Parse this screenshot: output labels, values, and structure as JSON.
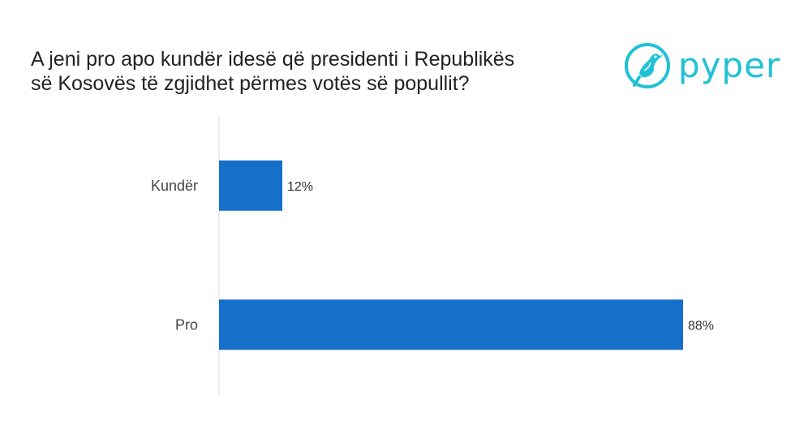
{
  "brand": {
    "name": "pyper",
    "logo_icon": "bird-in-circle-icon",
    "color": "#1fc1d6"
  },
  "colors": {
    "bar": "#1470c8",
    "axis": "#d9d9d9",
    "label": "#444444",
    "value_label": "#333333"
  },
  "chart_data": {
    "type": "bar",
    "orientation": "horizontal",
    "title": "A jeni pro apo kundër idesë që presidenti i Republikës së Kosovës të zgjidhet përmes votës së popullit?",
    "title_lines": [
      "A jeni pro apo kundër idesë që presidenti i Republikës",
      "së Kosovës të zgjidhet përmes votës së popullit?"
    ],
    "categories": [
      "Kundër",
      "Pro"
    ],
    "values": [
      12,
      88
    ],
    "value_labels": [
      "12%",
      "88%"
    ],
    "unit": "%",
    "xlim": [
      0,
      100
    ],
    "xlabel": "",
    "ylabel": "",
    "grid": false,
    "legend": "none"
  }
}
